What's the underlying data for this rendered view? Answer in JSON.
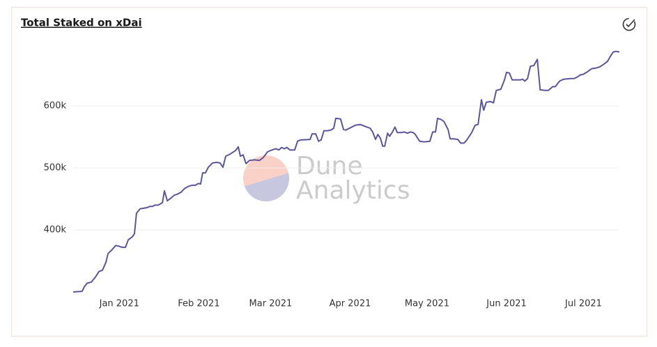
{
  "chart_data": {
    "type": "line",
    "title": "Total Staked on xDai",
    "watermark": [
      "Dune",
      "Analytics"
    ],
    "grid": true,
    "xlim": [
      0,
      213
    ],
    "xticks": [
      {
        "value": 18,
        "label": "Jan 2021"
      },
      {
        "value": 49,
        "label": "Feb 2021"
      },
      {
        "value": 77,
        "label": "Mar 2021"
      },
      {
        "value": 108,
        "label": "Apr 2021"
      },
      {
        "value": 138,
        "label": "May 2021"
      },
      {
        "value": 169,
        "label": "Jun 2021"
      },
      {
        "value": 199,
        "label": "Jul 2021"
      }
    ],
    "ylim": [
      300000,
      700000
    ],
    "yticks": [
      {
        "value": 400000,
        "label": "400k"
      },
      {
        "value": 500000,
        "label": "500k"
      },
      {
        "value": 600000,
        "label": "600k"
      }
    ],
    "x": [
      0,
      3.5,
      4.3,
      5.4,
      7.1,
      8.7,
      10.1,
      11.4,
      12.8,
      13.6,
      14.9,
      16.6,
      17.7,
      19.0,
      20.4,
      21.5,
      23.1,
      23.9,
      24.7,
      26.1,
      27.4,
      28.8,
      29.9,
      31.0,
      31.8,
      33.2,
      34.8,
      35.6,
      36.7,
      38.0,
      39.4,
      40.8,
      42.1,
      43.5,
      44.8,
      46.2,
      47.6,
      48.9,
      49.7,
      50.5,
      51.6,
      52.7,
      54.3,
      56.0,
      57.3,
      58.4,
      59.5,
      61.1,
      63.3,
      64.4,
      65.2,
      66.3,
      67.4,
      68.8,
      70.7,
      72.6,
      74.2,
      75.8,
      76.9,
      78.3,
      79.1,
      80.2,
      81.3,
      82.3,
      83.4,
      84.5,
      86.4,
      87.5,
      88.6,
      92.4,
      93.2,
      94.6,
      95.7,
      96.7,
      97.8,
      99.2,
      100.5,
      101.6,
      102.4,
      104.3,
      105.4,
      106.3,
      108.2,
      110.1,
      112.0,
      113.9,
      115.8,
      116.8,
      117.9,
      118.8,
      119.8,
      120.7,
      121.5,
      122.6,
      123.4,
      124.5,
      125.5,
      126.4,
      128.0,
      129.1,
      130.4,
      131.5,
      132.6,
      133.4,
      135.1,
      136.9,
      139.1,
      140.2,
      141.3,
      142.1,
      143.5,
      144.6,
      146.2,
      147.0,
      148.4,
      150.0,
      151.1,
      152.4,
      153.5,
      155.4,
      156.8,
      157.9,
      159.2,
      160.1,
      161.1,
      162.8,
      163.9,
      165.0,
      166.8,
      168.2,
      169.0,
      170.1,
      171.2,
      173.1,
      174.5,
      175.3,
      176.1,
      177.2,
      178.3,
      179.6,
      181.0,
      182.1,
      184.0,
      185.3,
      187.0,
      188.0,
      189.7,
      191.3,
      193.8,
      195.4,
      196.7,
      197.8,
      198.9,
      200.5,
      202.2,
      203.8,
      205.4,
      206.8,
      208.4,
      209.5,
      210.6,
      211.7,
      213
    ],
    "series": [
      {
        "color": "#5b559b",
        "values": [
          300000,
          301000,
          308000,
          314000,
          316000,
          324000,
          333000,
          335000,
          348000,
          362000,
          367000,
          375000,
          374000,
          372000,
          372000,
          384000,
          389000,
          394000,
          427000,
          434000,
          435000,
          436000,
          438000,
          438000,
          440000,
          440000,
          444000,
          463000,
          447000,
          451000,
          456000,
          458000,
          461000,
          467000,
          470000,
          472000,
          472000,
          475000,
          474000,
          492000,
          492000,
          501000,
          508000,
          509000,
          508000,
          501000,
          519000,
          522000,
          528000,
          534000,
          519000,
          521000,
          507000,
          512000,
          513000,
          512000,
          517000,
          526000,
          528000,
          530000,
          531000,
          529000,
          533000,
          531000,
          533000,
          529000,
          529000,
          543000,
          545000,
          546000,
          555000,
          555000,
          543000,
          545000,
          560000,
          560000,
          561000,
          564000,
          580000,
          579000,
          562000,
          561000,
          565000,
          569000,
          570000,
          567000,
          564000,
          558000,
          546000,
          554000,
          548000,
          535000,
          535000,
          556000,
          551000,
          558000,
          566000,
          557000,
          557000,
          558000,
          556000,
          558000,
          557000,
          554000,
          543000,
          542000,
          543000,
          558000,
          558000,
          580000,
          578000,
          575000,
          562000,
          547000,
          547000,
          546000,
          540000,
          540000,
          545000,
          557000,
          569000,
          570000,
          610000,
          593000,
          606000,
          607000,
          605000,
          625000,
          627000,
          642000,
          654000,
          653000,
          642000,
          642000,
          642000,
          643000,
          640000,
          644000,
          664000,
          665000,
          675000,
          626000,
          625000,
          625000,
          631000,
          631000,
          640000,
          643000,
          644000,
          644000,
          647000,
          650000,
          651000,
          655000,
          660000,
          661000,
          663000,
          667000,
          672000,
          680000,
          687000,
          688000,
          687000
        ]
      }
    ]
  }
}
